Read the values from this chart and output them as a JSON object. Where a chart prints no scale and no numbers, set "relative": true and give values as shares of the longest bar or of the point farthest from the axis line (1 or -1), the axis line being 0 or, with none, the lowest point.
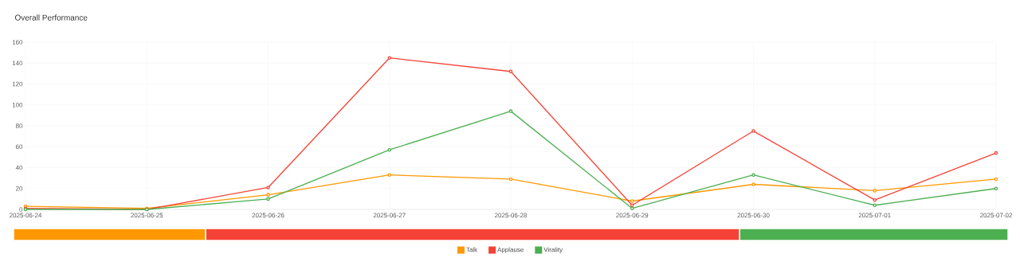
{
  "chart_data": [
    {
      "type": "line",
      "title": "Overall Performance",
      "categories": [
        "2025-06-24",
        "2025-06-25",
        "2025-06-26",
        "2025-06-27",
        "2025-06-28",
        "2025-06-29",
        "2025-06-30",
        "2025-07-01",
        "2025-07-02"
      ],
      "series": [
        {
          "name": "Talk",
          "color": "#ff9800",
          "values": [
            3,
            1,
            14,
            33,
            29,
            8,
            24,
            18,
            29
          ]
        },
        {
          "name": "Applause",
          "color": "#f44336",
          "values": [
            1,
            0,
            21,
            145,
            132,
            4,
            75,
            9,
            54
          ]
        },
        {
          "name": "Virality",
          "color": "#4caf50",
          "values": [
            0,
            0,
            10,
            57,
            94,
            1,
            33,
            4,
            20
          ]
        }
      ],
      "ylim": [
        0,
        160
      ],
      "yticks": [
        0,
        20,
        40,
        60,
        80,
        100,
        120,
        140,
        160
      ],
      "grid": true,
      "legend": "bottom",
      "marker": "circle",
      "line_style": "solid"
    },
    {
      "type": "bar",
      "orientation": "horizontal",
      "stacked": true,
      "relative": true,
      "categories": [
        null
      ],
      "series": [
        {
          "color": "#ff9800",
          "values": [
            0.193
          ]
        },
        {
          "color": "#f44336",
          "values": [
            0.537
          ]
        },
        {
          "color": "#4caf50",
          "values": [
            0.27
          ]
        }
      ]
    }
  ]
}
